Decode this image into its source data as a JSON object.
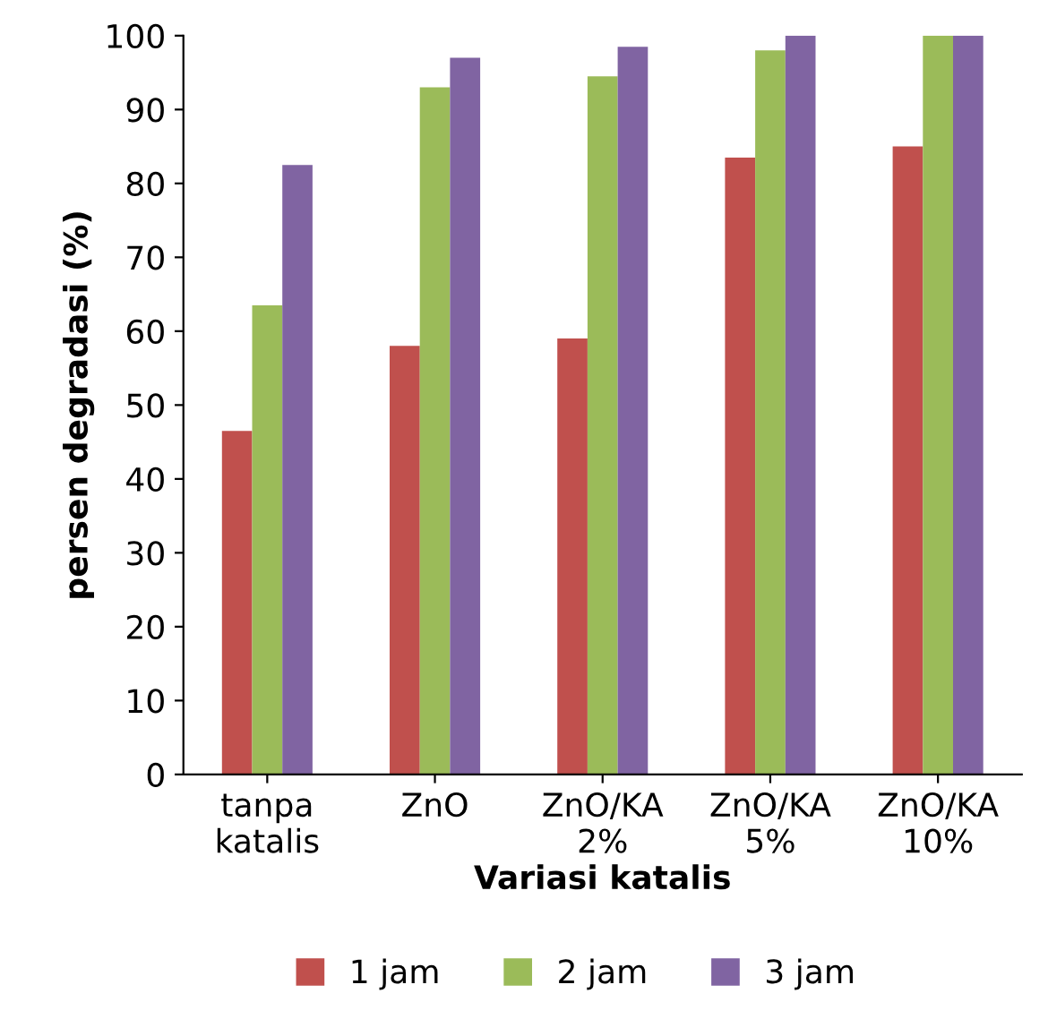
{
  "chart_data": {
    "type": "bar",
    "xlabel": "Variasi katalis",
    "ylabel": "persen degradasi (%)",
    "categories": [
      "tanpa\nkatalis",
      "ZnO",
      "ZnO/KA\n2%",
      "ZnO/KA\n5%",
      "ZnO/KA\n10%"
    ],
    "series": [
      {
        "name": "1 jam",
        "color": "#c0504d",
        "values": [
          46.5,
          58,
          59,
          83.5,
          85
        ]
      },
      {
        "name": "2 jam",
        "color": "#9bbb59",
        "values": [
          63.5,
          93,
          94.5,
          98,
          100
        ]
      },
      {
        "name": "3 jam",
        "color": "#8064a2",
        "values": [
          82.5,
          97,
          98.5,
          100,
          100
        ]
      }
    ],
    "ylim": [
      0,
      100
    ],
    "yticks": [
      0,
      10,
      20,
      30,
      40,
      50,
      60,
      70,
      80,
      90,
      100
    ],
    "grid": false,
    "legend": "bottom"
  }
}
